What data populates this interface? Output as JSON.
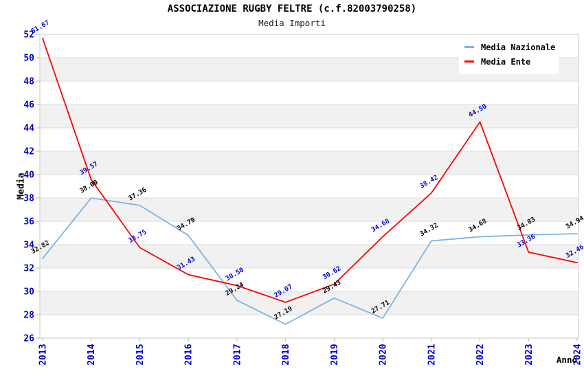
{
  "title": "ASSOCIAZIONE RUGBY FELTRE (c.f.82003790258)",
  "subtitle": "Media Importi",
  "chart_data": {
    "type": "line",
    "x": [
      "2013",
      "2014",
      "2015",
      "2016",
      "2017",
      "2018",
      "2019",
      "2020",
      "2021",
      "2022",
      "2023",
      "2024"
    ],
    "xlabel": "Anno",
    "ylabel": "Media",
    "ylim": [
      26,
      52
    ],
    "ytick_step": 2,
    "grid": "horizontal-gridlines-with-alternating-bands",
    "legend_position": "top-right",
    "series": [
      {
        "name": "Media Nazionale",
        "color": "#7FB2E5",
        "label_color": "#000000",
        "values": [
          32.82,
          38.0,
          37.36,
          34.79,
          29.24,
          27.19,
          29.43,
          27.71,
          34.32,
          34.68,
          34.83,
          34.94
        ]
      },
      {
        "name": "Media Ente",
        "color": "#FF0000",
        "label_color": "#0000CC",
        "values": [
          51.67,
          39.57,
          33.75,
          31.43,
          30.5,
          29.07,
          30.62,
          34.68,
          38.42,
          44.5,
          33.36,
          32.46
        ]
      }
    ]
  },
  "colors": {
    "axis_tick_label": "#0000CC",
    "axis_title": "#000000",
    "plot_border": "#C8C8C8",
    "gridline": "#DCDCDC",
    "band": "#F1F1F1",
    "tick_mark": "#B4B4B4",
    "background": "#FFFFFF"
  }
}
